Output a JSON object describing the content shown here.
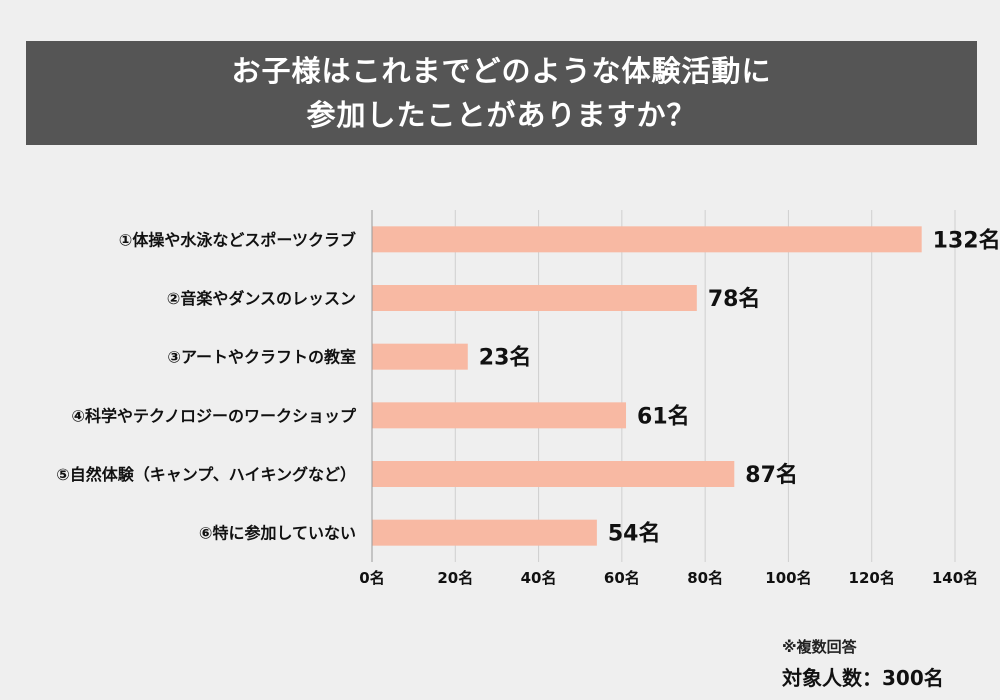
{
  "title": {
    "line1": "お子様はこれまでどのような体験活動に",
    "line2": "参加したことがありますか？"
  },
  "colors": {
    "bar": "#f8b9a3",
    "grid": "#cfcfcf",
    "axis": "#999999",
    "banner": "#555555"
  },
  "value_suffix": "名",
  "chart_data": {
    "type": "bar",
    "orientation": "horizontal",
    "title": "お子様はこれまでどのような体験活動に参加したことがありますか？",
    "categories": [
      "①体操や水泳などスポーツクラブ",
      "②音楽やダンスのレッスン",
      "③アートやクラフトの教室",
      "④科学やテクノロジーのワークショップ",
      "⑤自然体験（キャンプ、ハイキングなど）",
      "⑥特に参加していない"
    ],
    "values": [
      132,
      78,
      23,
      61,
      87,
      54
    ],
    "value_labels": [
      "132名",
      "78名",
      "23名",
      "61名",
      "87名",
      "54名"
    ],
    "xlim": [
      0,
      140
    ],
    "ticks": [
      0,
      20,
      40,
      60,
      80,
      100,
      120,
      140
    ],
    "tick_labels": [
      "0名",
      "20名",
      "40名",
      "60名",
      "80名",
      "100名",
      "120名",
      "140名"
    ],
    "grid": true
  },
  "footnote": "※複数回答",
  "total": "対象人数：300名"
}
